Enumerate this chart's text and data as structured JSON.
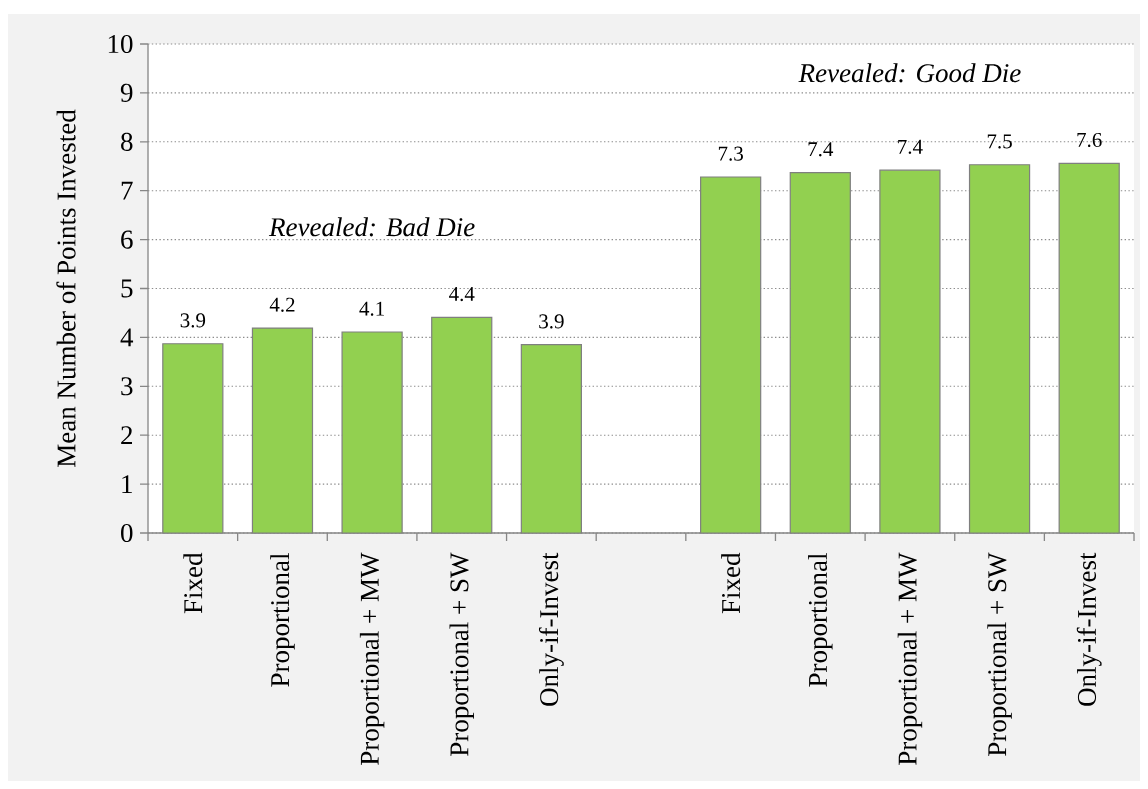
{
  "chart_data": {
    "type": "bar",
    "ylabel": "Mean Number of Points Invested",
    "categories": [
      "Fixed",
      "Proportional",
      "Proportional + MW",
      "Proportional + SW",
      "Only-if-Invest",
      null,
      "Fixed",
      "Proportional",
      "Proportional + MW",
      "Proportional + SW",
      "Only-if-Invest"
    ],
    "values": [
      3.87,
      4.19,
      4.11,
      4.41,
      3.85,
      null,
      7.28,
      7.37,
      7.42,
      7.53,
      7.56
    ],
    "value_labels": [
      "3.9",
      "4.2",
      "4.1",
      "4.4",
      "3.9",
      null,
      "7.3",
      "7.4",
      "7.4",
      "7.5",
      "7.6"
    ],
    "color": "#92d050",
    "ylim": [
      0,
      10
    ],
    "yticks": [
      0,
      1,
      2,
      3,
      4,
      5,
      6,
      7,
      8,
      9,
      10
    ],
    "grid": "y",
    "annotations": [
      "Revealed: Bad Die",
      "Revealed: Good Die"
    ]
  }
}
